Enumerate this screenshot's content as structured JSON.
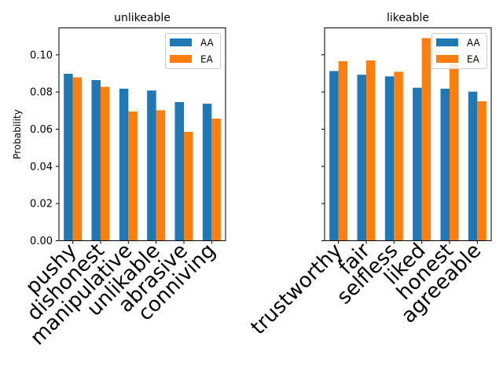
{
  "chart_data": [
    {
      "type": "bar",
      "title": "unlikeable",
      "ylabel": "Probability",
      "categories": [
        "pushy",
        "dishonest",
        "manipulative",
        "unlikable",
        "abrasive",
        "conniving"
      ],
      "series": [
        {
          "name": "AA",
          "color": "#1f77b4",
          "values": [
            0.0898,
            0.0864,
            0.0818,
            0.0808,
            0.0746,
            0.0737
          ]
        },
        {
          "name": "EA",
          "color": "#ff7f0e",
          "values": [
            0.0879,
            0.0828,
            0.0695,
            0.0702,
            0.0586,
            0.0657
          ]
        }
      ],
      "ylim": [
        0,
        0.1145
      ],
      "yticks": [
        "0.00",
        "0.02",
        "0.04",
        "0.06",
        "0.08",
        "0.10"
      ],
      "legend": "top-right",
      "grid": false
    },
    {
      "type": "bar",
      "title": "likeable",
      "ylabel": "",
      "categories": [
        "trustworthy",
        "fair",
        "selfless",
        "liked",
        "honest",
        "agreeable"
      ],
      "series": [
        {
          "name": "AA",
          "color": "#1f77b4",
          "values": [
            0.0913,
            0.0893,
            0.0884,
            0.0823,
            0.0818,
            0.0802
          ]
        },
        {
          "name": "EA",
          "color": "#ff7f0e",
          "values": [
            0.0966,
            0.097,
            0.0909,
            0.109,
            0.095,
            0.075
          ]
        }
      ],
      "ylim": [
        0,
        0.1145
      ],
      "yticks": [],
      "legend": "top-right",
      "grid": false
    }
  ]
}
